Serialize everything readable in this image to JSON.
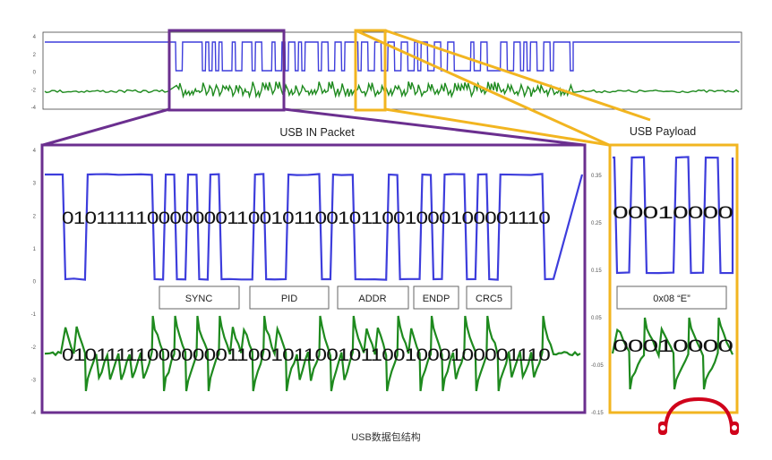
{
  "colors": {
    "d_plus": "#3d3ddc",
    "d_minus": "#1e8a1e",
    "packet_frame": "#6b2f8f",
    "payload_frame": "#f2b520",
    "logo": "#d0021b"
  },
  "overview": {
    "y_ticks": [
      "4",
      "2",
      "0",
      "-2",
      "-4"
    ]
  },
  "packet_view": {
    "title": "USB IN Packet",
    "y_ticks": [
      "4",
      "3",
      "2",
      "1",
      "0",
      "-1",
      "-2",
      "-3",
      "-4"
    ],
    "bits_top": "01011111000000011001011001011001000100001110",
    "bits_bottom": "01011111000000011001011001011001000100001110",
    "fields": [
      "SYNC",
      "PID",
      "ADDR",
      "ENDP",
      "CRC5"
    ]
  },
  "payload_view": {
    "title": "USB Payload",
    "y_ticks": [
      "0.35",
      "0.25",
      "0.15",
      "0.05",
      "-0.05",
      "-0.15"
    ],
    "bits_top": "00010000",
    "bits_bottom": "00010000",
    "field": "0x08 “E”"
  },
  "caption": "USB数据包结构",
  "logo_icon": "headphones-logo-icon"
}
